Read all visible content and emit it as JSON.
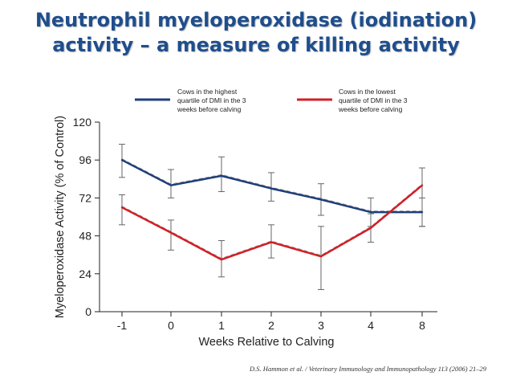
{
  "slide": {
    "title_line1": "Neutrophil myeloperoxidase (iodination)",
    "title_line2": "activity – a measure of killing activity",
    "source": "D.S. Hammon et al. / Veterinary Immunology and Immunopathology 113 (2006) 21–29"
  },
  "colors": {
    "title": "#1f4e8c",
    "series_high": "#1f3f7a",
    "series_low": "#d21f26",
    "fit": "#9a9a9a",
    "error": "#666666"
  },
  "chart_data": {
    "type": "line",
    "categories": [
      "-1",
      "0",
      "1",
      "2",
      "3",
      "4",
      "8"
    ],
    "xlabel": "Weeks Relative to Calving",
    "ylabel": "Myeloperoxidase Activity (% of Control)",
    "ylim": [
      0,
      120
    ],
    "yticks": [
      "0",
      "24",
      "48",
      "72",
      "96",
      "120"
    ],
    "grid": false,
    "legend_position": "top",
    "series": [
      {
        "name_lines": [
          "Cows in the highest",
          "quartile of DMI in the 3",
          "weeks before calving"
        ],
        "color": "#1f3f7a",
        "values": [
          96,
          80,
          86,
          78,
          71,
          63,
          63
        ],
        "error_low": [
          85,
          72,
          76,
          70,
          61,
          54,
          54
        ],
        "error_high": [
          106,
          90,
          98,
          88,
          81,
          72,
          72
        ]
      },
      {
        "name_lines": [
          "Cows in the lowest",
          "quartile of DMI in the 3",
          "weeks before calving"
        ],
        "color": "#d21f26",
        "values": [
          66,
          50,
          33,
          44,
          35,
          53,
          80
        ],
        "error_low": [
          55,
          39,
          22,
          34,
          14,
          44,
          54
        ],
        "error_high": [
          74,
          58,
          45,
          55,
          54,
          62,
          91
        ]
      }
    ]
  }
}
